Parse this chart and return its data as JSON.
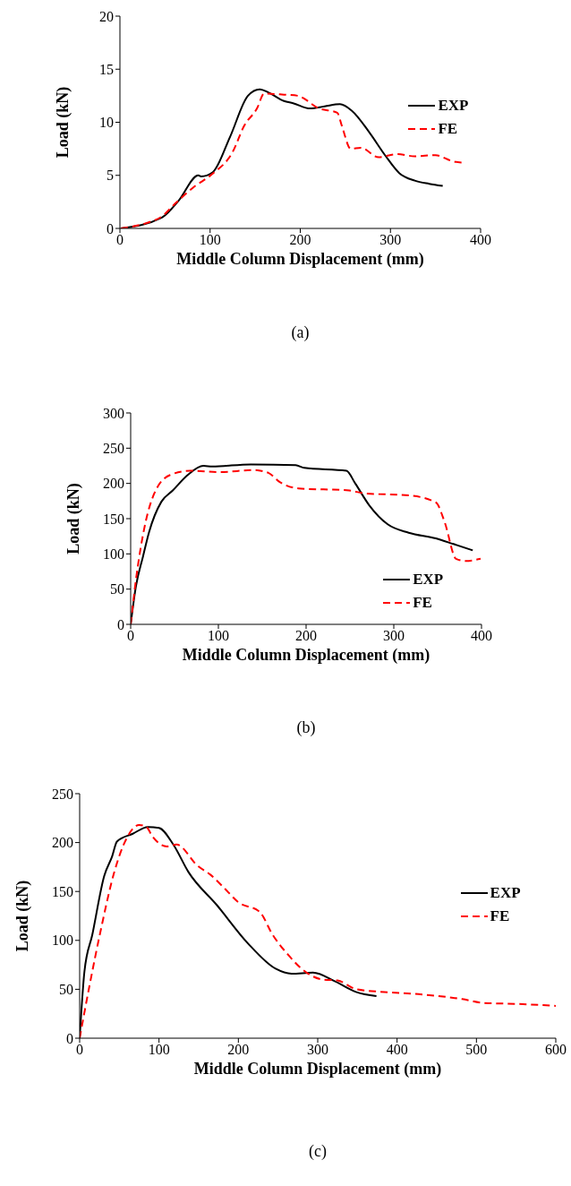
{
  "chart_data": [
    {
      "type": "line",
      "xlabel": "Middle Column Displacement (mm)",
      "ylabel": "Load (kN)",
      "xlim": [
        0,
        400
      ],
      "xticks": [
        0,
        100,
        200,
        300,
        400
      ],
      "ylim": [
        0,
        20
      ],
      "yticks": [
        0,
        5,
        10,
        15,
        20
      ],
      "legend": "right",
      "annotations": [
        "(a)"
      ],
      "series": [
        {
          "name": "EXP",
          "color": "#000000",
          "line_style": "solid",
          "x": [
            1,
            46,
            48,
            65,
            87,
            90,
            103,
            122,
            142,
            155,
            165,
            182,
            192,
            211,
            227,
            244,
            257,
            277,
            294,
            310,
            327,
            343,
            358
          ],
          "values": [
            0,
            1.0,
            1.1,
            2.6,
            5.0,
            4.9,
            5.3,
            8.6,
            12.5,
            13.1,
            12.8,
            12.0,
            11.8,
            11.3,
            11.5,
            11.7,
            11.1,
            9.0,
            6.9,
            5.2,
            4.5,
            4.2,
            4.0
          ]
        },
        {
          "name": "FE",
          "color": "#ff0000",
          "line_style": "dashed",
          "x": [
            1,
            29,
            46,
            62,
            82,
            102,
            125,
            138,
            152,
            160,
            182,
            197,
            221,
            241,
            246,
            256,
            267,
            287,
            307,
            327,
            350,
            370,
            381
          ],
          "values": [
            0,
            0.5,
            1.1,
            2.4,
            3.9,
            5.1,
            7.2,
            9.7,
            11.3,
            12.7,
            12.6,
            12.5,
            11.3,
            10.9,
            9.7,
            7.5,
            7.6,
            6.7,
            7.0,
            6.8,
            6.9,
            6.3,
            6.2
          ]
        }
      ]
    },
    {
      "type": "line",
      "xlabel": "Middle Column Displacement (mm)",
      "ylabel": "Load (kN)",
      "xlim": [
        0,
        400
      ],
      "xticks": [
        0,
        100,
        200,
        300,
        400
      ],
      "ylim": [
        0,
        300
      ],
      "yticks": [
        0,
        50,
        100,
        150,
        200,
        250,
        300
      ],
      "legend": "bottom right",
      "annotations": [
        "(b)"
      ],
      "series": [
        {
          "name": "EXP",
          "color": "#000000",
          "line_style": "solid",
          "x": [
            0,
            6,
            14,
            21,
            35,
            48,
            65,
            83,
            93,
            137,
            188,
            198,
            246,
            256,
            272,
            293,
            317,
            348,
            368,
            390
          ],
          "values": [
            0,
            54,
            96,
            131,
            174,
            190,
            212,
            225,
            224,
            227,
            226,
            222,
            218,
            200,
            169,
            142,
            130,
            122,
            114,
            105
          ]
        },
        {
          "name": "FE",
          "color": "#ff0000",
          "line_style": "dashed",
          "x": [
            0,
            6,
            17,
            27,
            45,
            68,
            102,
            140,
            157,
            170,
            191,
            249,
            266,
            317,
            348,
            358,
            371,
            382,
            399
          ],
          "values": [
            0,
            63,
            145,
            186,
            212,
            218,
            216,
            219,
            215,
            202,
            193,
            190,
            186,
            183,
            173,
            145,
            93,
            90,
            93
          ]
        }
      ]
    },
    {
      "type": "line",
      "xlabel": "Middle Column Displacement (mm)",
      "ylabel": "Load (kN)",
      "xlim": [
        0,
        600
      ],
      "xticks": [
        0,
        100,
        200,
        300,
        400,
        500,
        600
      ],
      "ylim": [
        0,
        250
      ],
      "yticks": [
        0,
        50,
        100,
        150,
        200,
        250
      ],
      "legend": "right",
      "annotations": [
        "(c)"
      ],
      "series": [
        {
          "name": "EXP",
          "color": "#000000",
          "line_style": "solid",
          "x": [
            0,
            6,
            16,
            31,
            41,
            47,
            67,
            86,
            100,
            118,
            137,
            173,
            212,
            247,
            267,
            294,
            322,
            349,
            374
          ],
          "values": [
            0,
            68,
            106,
            166,
            186,
            201,
            209,
            216,
            215,
            198,
            170,
            136,
            97,
            71,
            66,
            67,
            58,
            47,
            43
          ]
        },
        {
          "name": "FE",
          "color": "#ff0000",
          "line_style": "dashed",
          "x": [
            0,
            12,
            27,
            43,
            59,
            75,
            84,
            92,
            110,
            122,
            149,
            165,
            184,
            200,
            227,
            243,
            263,
            286,
            306,
            325,
            349,
            388,
            427,
            482,
            510,
            553,
            600
          ],
          "values": [
            0,
            52,
            112,
            168,
            204,
            218,
            216,
            206,
            196,
            198,
            176,
            167,
            152,
            139,
            129,
            106,
            85,
            67,
            60,
            59,
            50,
            47,
            45,
            40,
            36,
            35,
            33
          ]
        }
      ]
    }
  ]
}
